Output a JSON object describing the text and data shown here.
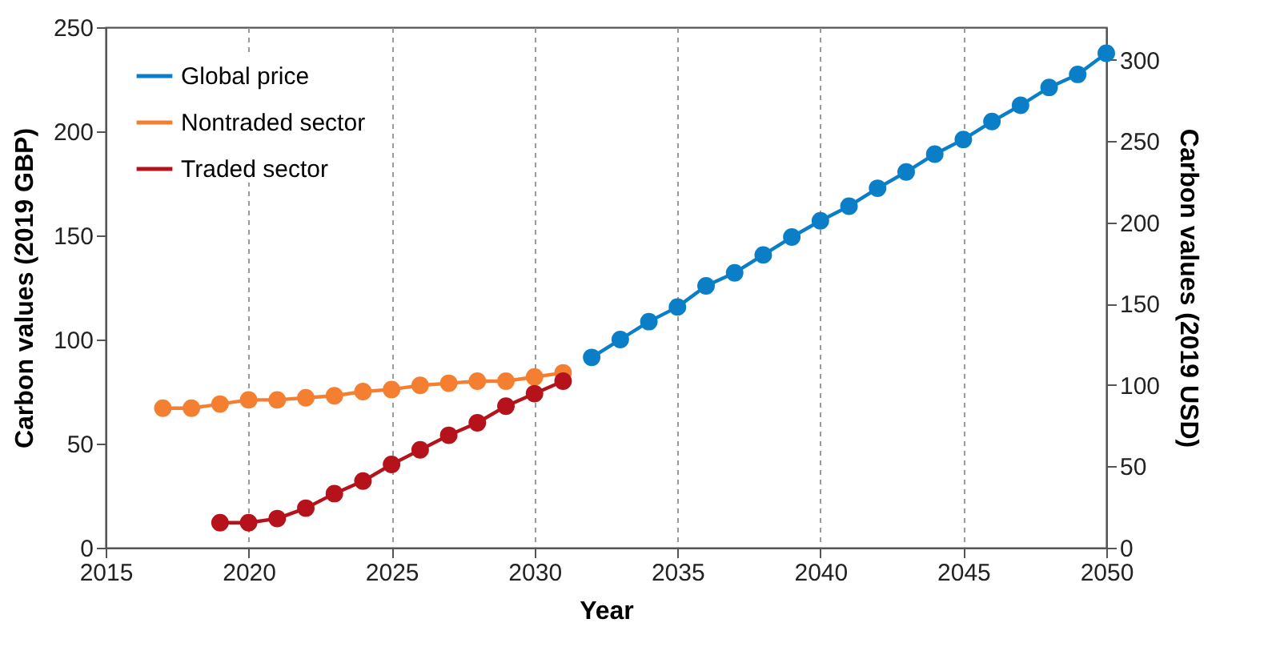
{
  "chart_data": {
    "type": "line",
    "xlabel": "Year",
    "ylabel": "Carbon values (2019 GBP)",
    "y2label": "Carbon values (2019 USD)",
    "xlim": [
      2015,
      2050
    ],
    "xticks": [
      2015,
      2020,
      2025,
      2030,
      2035,
      2040,
      2045,
      2050
    ],
    "ylim": [
      0,
      250
    ],
    "yticks": [
      0,
      50,
      100,
      150,
      200,
      250
    ],
    "y2lim": [
      0,
      320
    ],
    "y2ticks": [
      0,
      50,
      100,
      150,
      200,
      250,
      300
    ],
    "grid": "x",
    "legend": "top left",
    "marker": "circle",
    "line_style": "solid",
    "series": [
      {
        "name": "Global price",
        "color": "#0a7fc8",
        "axis": "y2",
        "x": [
          2032,
          2033,
          2034,
          2035,
          2036,
          2037,
          2038,
          2039,
          2040,
          2041,
          2042,
          2043,
          2044,
          2045,
          2046,
          2047,
          2048,
          2049,
          2050
        ],
        "values": [
          117,
          128,
          139,
          148,
          161,
          169,
          180,
          191,
          201,
          210,
          221,
          231,
          242,
          251,
          262,
          272,
          283,
          291,
          304
        ]
      },
      {
        "name": "Nontraded sector",
        "color": "#f47f31",
        "x": [
          2017,
          2018,
          2019,
          2020,
          2021,
          2022,
          2023,
          2024,
          2025,
          2026,
          2027,
          2028,
          2029,
          2030,
          2031
        ],
        "values": [
          67,
          67,
          69,
          71,
          71,
          72,
          73,
          75,
          76,
          78,
          79,
          80,
          80,
          82,
          84
        ]
      },
      {
        "name": "Traded sector",
        "color": "#b5121b",
        "x": [
          2019,
          2020,
          2021,
          2022,
          2023,
          2024,
          2025,
          2026,
          2027,
          2028,
          2029,
          2030,
          2031
        ],
        "values": [
          12,
          12,
          14,
          19,
          26,
          32,
          40,
          47,
          54,
          60,
          68,
          74,
          80
        ]
      }
    ]
  }
}
